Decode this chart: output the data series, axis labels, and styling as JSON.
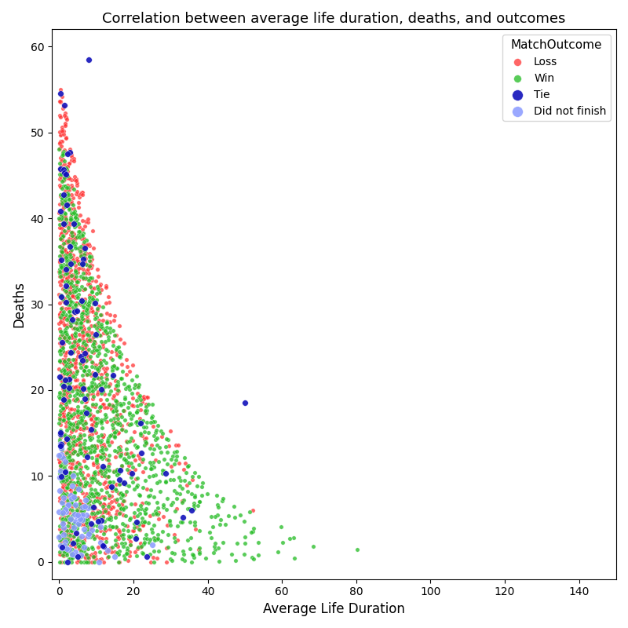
{
  "title": "Correlation between average life duration, deaths, and outcomes",
  "xlabel": "Average Life Duration",
  "ylabel": "Deaths",
  "xlim": [
    -2,
    150
  ],
  "ylim": [
    -2,
    62
  ],
  "colors": {
    "Loss": "#ff3333",
    "Win": "#22bb22",
    "Tie": "#1111bb",
    "Did not finish": "#8899ff"
  },
  "legend_title": "MatchOutcome",
  "figsize": [
    8.0,
    8.0
  ],
  "dpi": 100,
  "marker_size": 15
}
